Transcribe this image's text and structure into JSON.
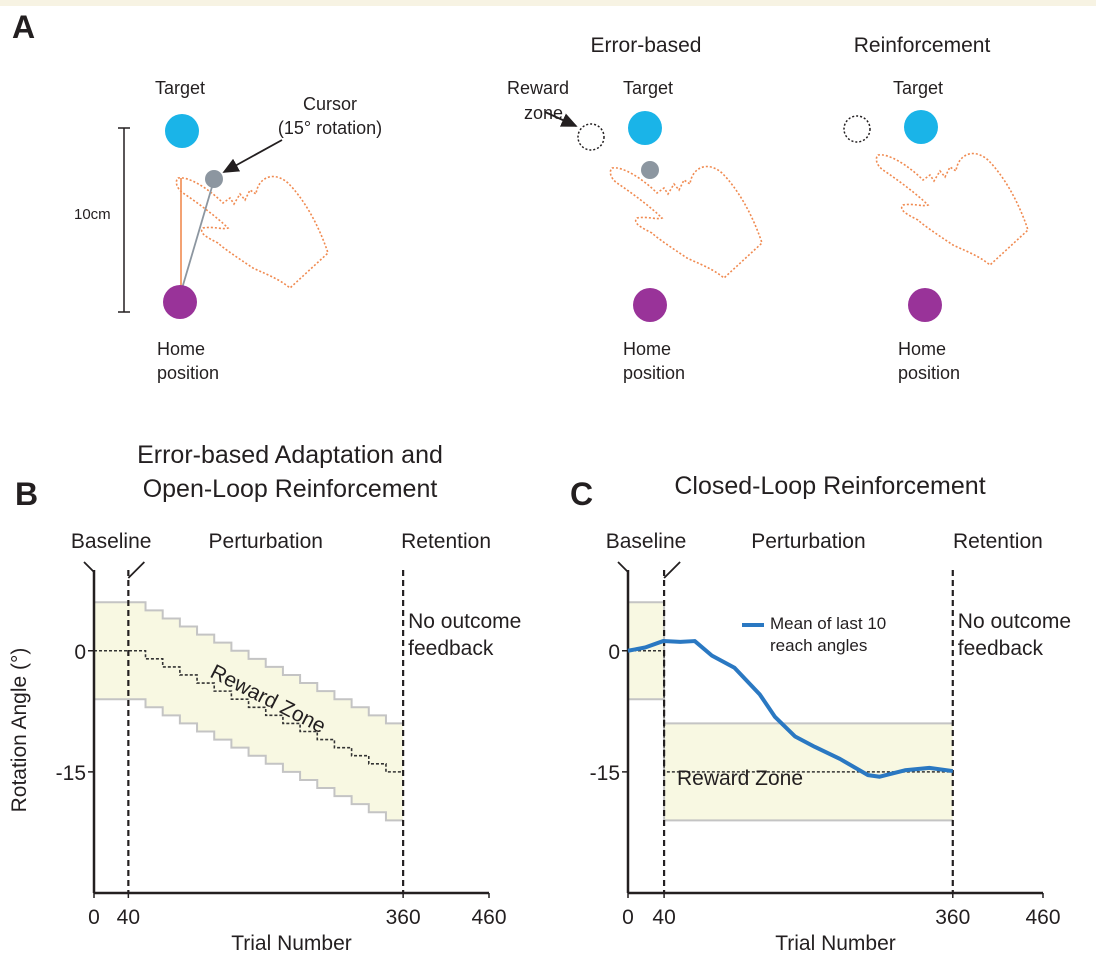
{
  "panel_a": {
    "label": "A",
    "setup": {
      "target": "Target",
      "cursor": [
        "Cursor",
        "(15° rotation)"
      ],
      "scale": "10cm",
      "home": [
        "Home",
        "position"
      ]
    },
    "error_based": {
      "title": "Error-based",
      "reward_zone": [
        "Reward",
        "zone"
      ],
      "target": "Target",
      "home": [
        "Home",
        "position"
      ]
    },
    "reinforcement": {
      "title": "Reinforcement",
      "target": "Target",
      "home": [
        "Home",
        "position"
      ]
    }
  },
  "chart_data": [
    {
      "type": "line",
      "panel_label": "B",
      "title": [
        "Error-based Adaptation and",
        "Open-Loop Reinforcement"
      ],
      "x_label": "Trial Number",
      "y_label": "Rotation Angle (°)",
      "xlim": [
        0,
        460
      ],
      "xticks": [
        0,
        40,
        360,
        460
      ],
      "ylim": [
        -30,
        10
      ],
      "yticks": [
        0,
        -15
      ],
      "phases": {
        "names": [
          "Baseline",
          "Perturbation",
          "Retention"
        ],
        "boundaries": [
          40,
          360
        ]
      },
      "annotation": [
        "No outcome",
        "feedback"
      ],
      "reward_zone": {
        "name": "Reward Zone",
        "color": "#f8f8e2",
        "x": [
          0,
          40,
          60,
          80,
          100,
          120,
          140,
          160,
          180,
          200,
          220,
          240,
          260,
          280,
          300,
          320,
          340,
          360
        ],
        "center": [
          0,
          0,
          -1,
          -2,
          -3,
          -4,
          -5,
          -6,
          -7,
          -8,
          -9,
          -10,
          -11,
          -12,
          -13,
          -14,
          -15,
          -15
        ],
        "halfwidth": 6
      },
      "series": []
    },
    {
      "type": "line",
      "panel_label": "C",
      "title": [
        "Closed-Loop Reinforcement"
      ],
      "x_label": "Trial Number",
      "y_label": "Rotation Angle (°)",
      "xlim": [
        0,
        460
      ],
      "xticks": [
        0,
        40,
        360,
        460
      ],
      "ylim": [
        -30,
        10
      ],
      "yticks": [
        0,
        -15
      ],
      "phases": {
        "names": [
          "Baseline",
          "Perturbation",
          "Retention"
        ],
        "boundaries": [
          40,
          360
        ]
      },
      "annotation": [
        "No outcome",
        "feedback"
      ],
      "reward_zone": {
        "name": "Reward Zone",
        "color": "#f8f8e2",
        "x": [
          0,
          40,
          360
        ],
        "center": [
          0,
          -15,
          -15
        ],
        "halfwidth": 6
      },
      "series": [
        {
          "name": "Mean of last 10 reach angles",
          "color": "#2a78c2",
          "x": [
            0,
            19,
            39,
            58,
            74,
            93,
            118,
            146,
            163,
            185,
            207,
            235,
            266,
            279,
            307,
            334,
            360
          ],
          "values": [
            0,
            0.4,
            1.2,
            1.1,
            1.2,
            -0.6,
            -2.1,
            -5.4,
            -8.2,
            -10.6,
            -11.9,
            -13.4,
            -15.4,
            -15.6,
            -14.8,
            -14.5,
            -14.9
          ]
        }
      ]
    }
  ]
}
